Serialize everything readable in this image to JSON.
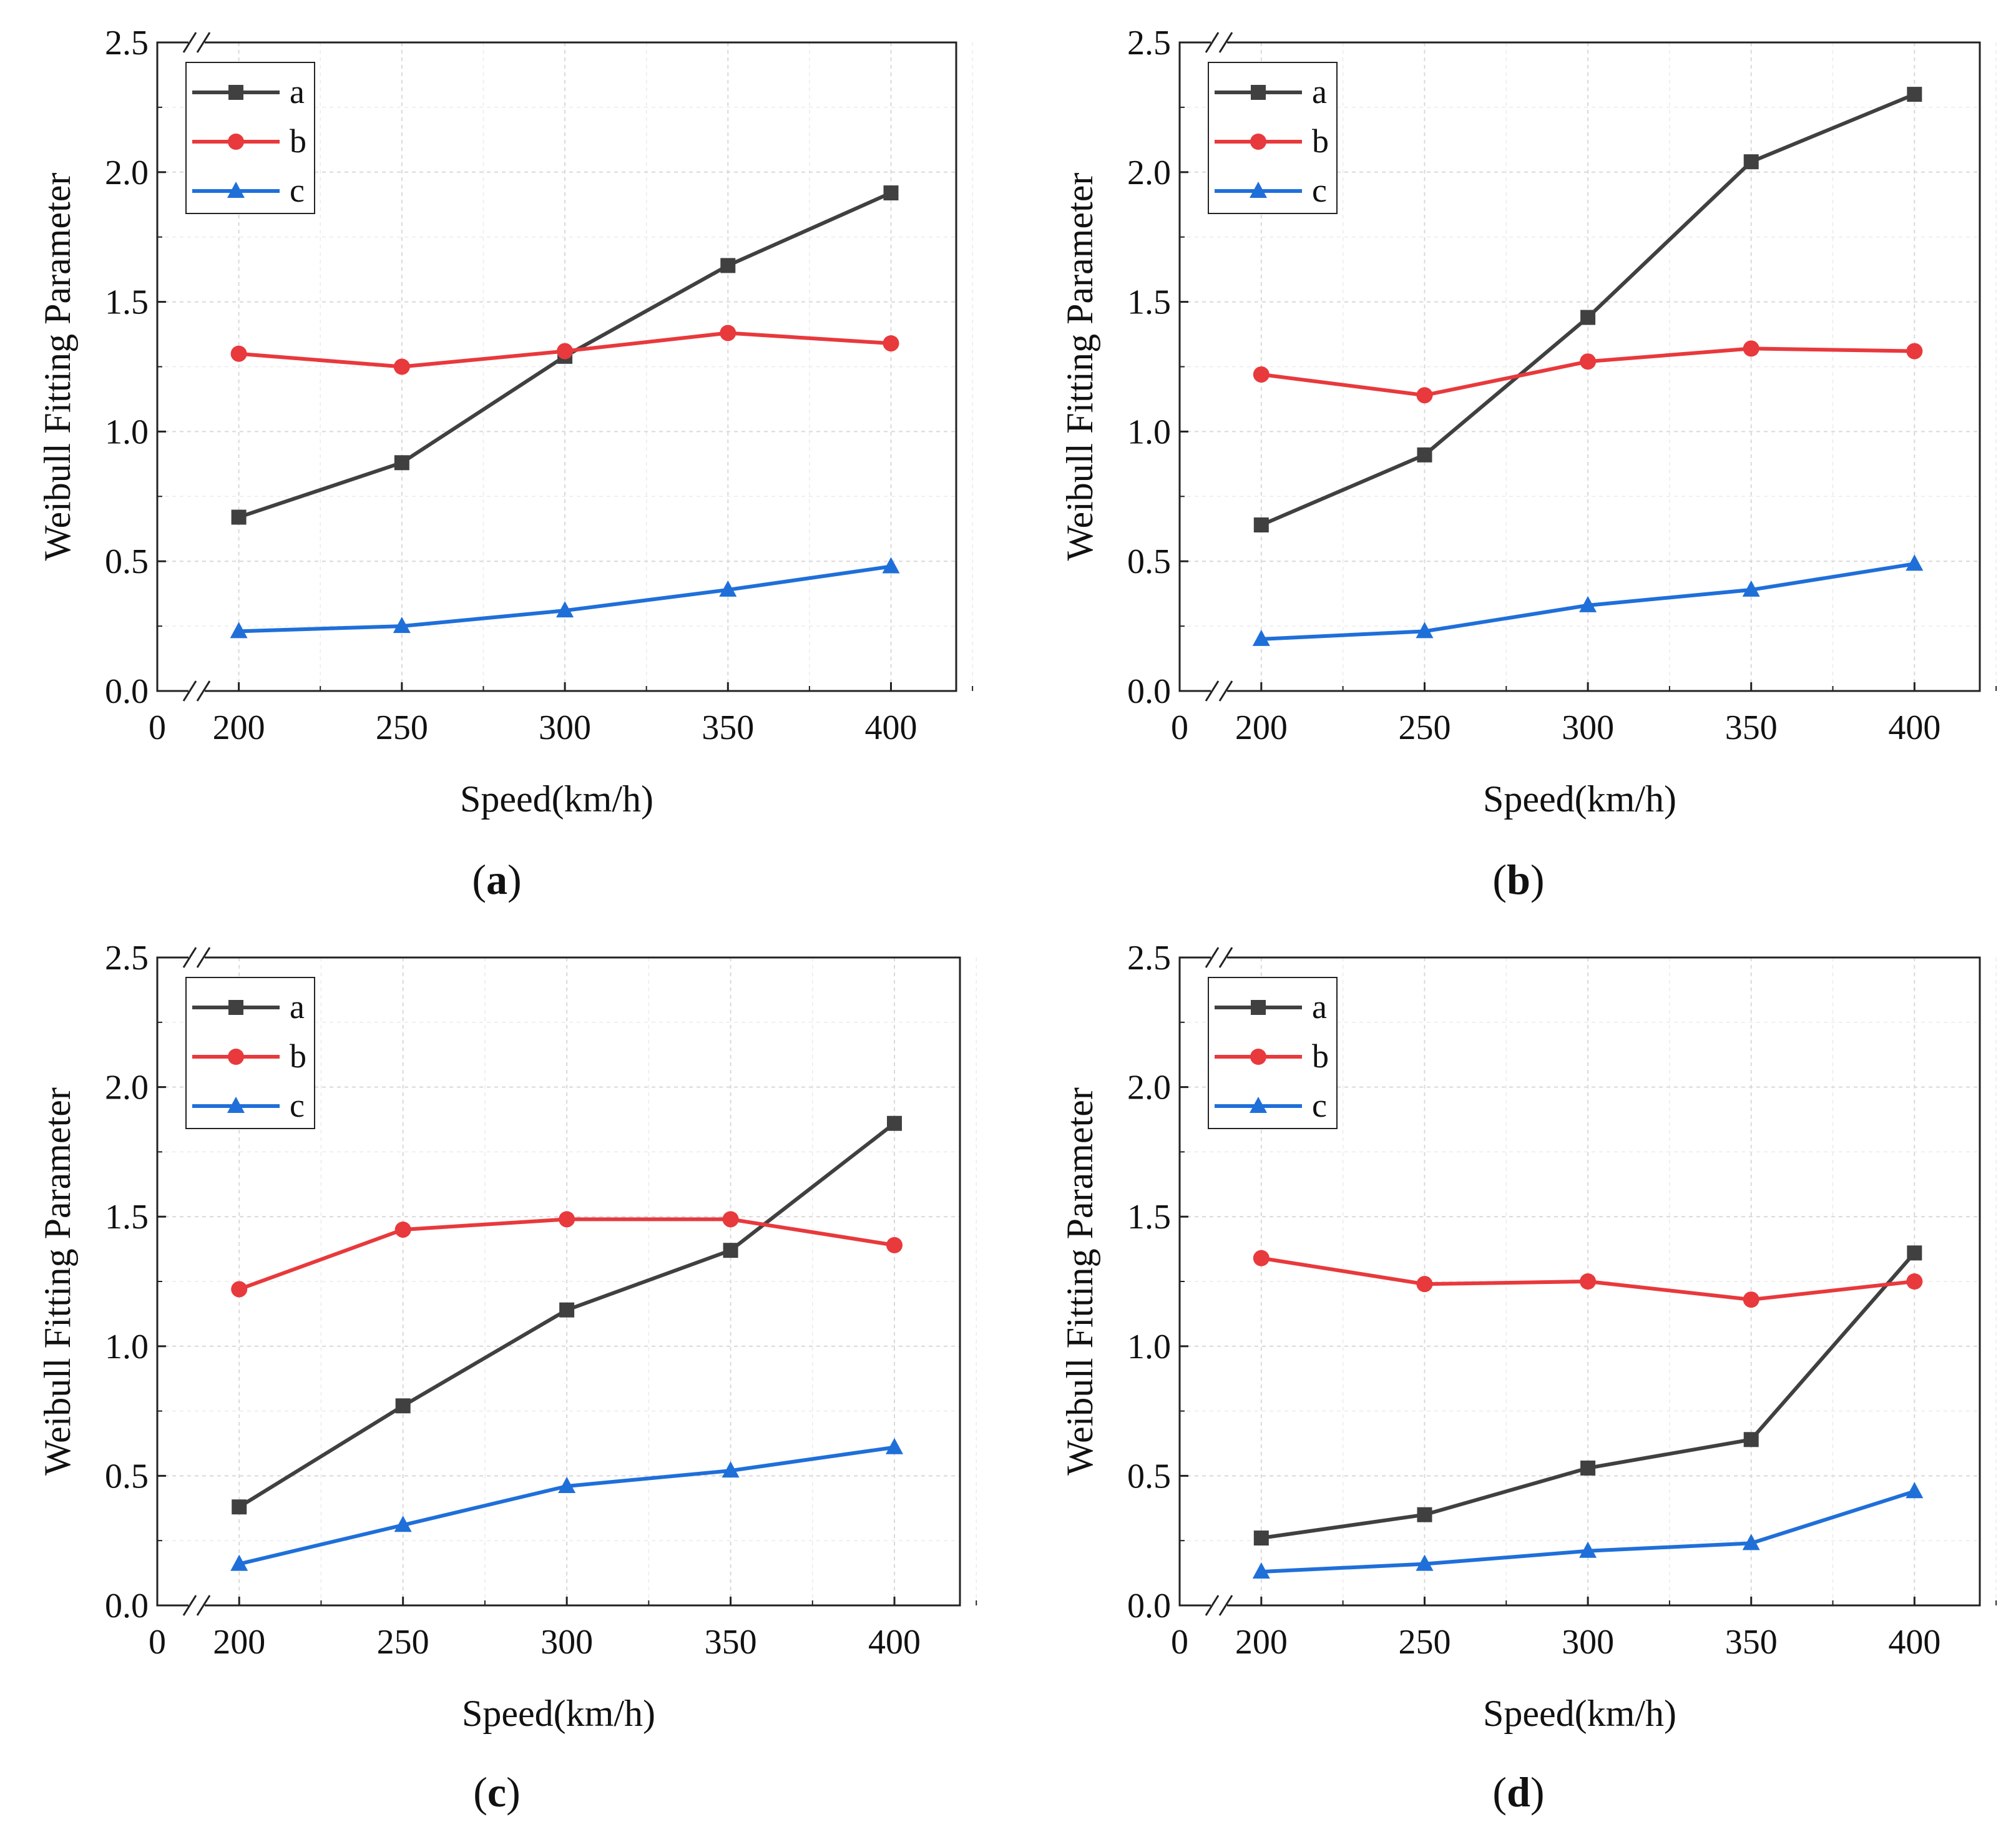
{
  "figure": {
    "y_zero_tick": "0.0",
    "x_zero_tick": "0"
  },
  "chart_data": [
    {
      "type": "line",
      "panel": "a",
      "caption_open": "(",
      "caption_letter": "a",
      "caption_close": ")",
      "xlabel": "Speed(km/h)",
      "ylabel": "Weibull Fitting Parameter",
      "x": [
        200,
        250,
        300,
        350,
        400
      ],
      "xlim": [
        175,
        420
      ],
      "ylim": [
        0,
        2.5
      ],
      "xticks": [
        200,
        250,
        300,
        350,
        400
      ],
      "yticks": [
        "0.0",
        "0.5",
        "1.0",
        "1.5",
        "2.0",
        "2.5"
      ],
      "grid": true,
      "legend": "top-left",
      "series": [
        {
          "name": "a",
          "color": "#404040",
          "marker": "square",
          "values": [
            0.67,
            0.88,
            1.29,
            1.64,
            1.92
          ]
        },
        {
          "name": "b",
          "color": "#e8393c",
          "marker": "circle",
          "values": [
            1.3,
            1.25,
            1.31,
            1.38,
            1.34
          ]
        },
        {
          "name": "c",
          "color": "#1f6fd9",
          "marker": "triangle",
          "values": [
            0.23,
            0.25,
            0.31,
            0.39,
            0.48
          ]
        }
      ]
    },
    {
      "type": "line",
      "panel": "b",
      "caption_open": "(",
      "caption_letter": "b",
      "caption_close": ")",
      "xlabel": "Speed(km/h)",
      "ylabel": "Weibull Fitting Parameter",
      "x": [
        200,
        250,
        300,
        350,
        400
      ],
      "xlim": [
        175,
        420
      ],
      "ylim": [
        0,
        2.5
      ],
      "xticks": [
        200,
        250,
        300,
        350,
        400
      ],
      "yticks": [
        "0.0",
        "0.5",
        "1.0",
        "1.5",
        "2.0",
        "2.5"
      ],
      "grid": true,
      "legend": "top-left",
      "series": [
        {
          "name": "a",
          "color": "#404040",
          "marker": "square",
          "values": [
            0.64,
            0.91,
            1.44,
            2.04,
            2.3
          ]
        },
        {
          "name": "b",
          "color": "#e8393c",
          "marker": "circle",
          "values": [
            1.22,
            1.14,
            1.27,
            1.32,
            1.31
          ]
        },
        {
          "name": "c",
          "color": "#1f6fd9",
          "marker": "triangle",
          "values": [
            0.2,
            0.23,
            0.33,
            0.39,
            0.49
          ]
        }
      ]
    },
    {
      "type": "line",
      "panel": "c",
      "caption_open": "(",
      "caption_letter": "c",
      "caption_close": ")",
      "xlabel": "Speed(km/h)",
      "ylabel": "Weibull Fitting Parameter",
      "x": [
        200,
        250,
        300,
        350,
        400
      ],
      "xlim": [
        175,
        420
      ],
      "ylim": [
        0,
        2.5
      ],
      "xticks": [
        200,
        250,
        300,
        350,
        400
      ],
      "yticks": [
        "0.0",
        "0.5",
        "1.0",
        "1.5",
        "2.0",
        "2.5"
      ],
      "grid": true,
      "legend": "top-left",
      "series": [
        {
          "name": "a",
          "color": "#404040",
          "marker": "square",
          "values": [
            0.38,
            0.77,
            1.14,
            1.37,
            1.86
          ]
        },
        {
          "name": "b",
          "color": "#e8393c",
          "marker": "circle",
          "values": [
            1.22,
            1.45,
            1.49,
            1.49,
            1.39
          ]
        },
        {
          "name": "c",
          "color": "#1f6fd9",
          "marker": "triangle",
          "values": [
            0.16,
            0.31,
            0.46,
            0.52,
            0.61
          ]
        }
      ]
    },
    {
      "type": "line",
      "panel": "d",
      "caption_open": "(",
      "caption_letter": "d",
      "caption_close": ")",
      "xlabel": "Speed(km/h)",
      "ylabel": "Weibull Fitting Parameter",
      "x": [
        200,
        250,
        300,
        350,
        400
      ],
      "xlim": [
        175,
        420
      ],
      "ylim": [
        0,
        2.5
      ],
      "xticks": [
        200,
        250,
        300,
        350,
        400
      ],
      "yticks": [
        "0.0",
        "0.5",
        "1.0",
        "1.5",
        "2.0",
        "2.5"
      ],
      "grid": true,
      "legend": "top-left",
      "series": [
        {
          "name": "a",
          "color": "#404040",
          "marker": "square",
          "values": [
            0.26,
            0.35,
            0.53,
            0.64,
            1.36
          ]
        },
        {
          "name": "b",
          "color": "#e8393c",
          "marker": "circle",
          "values": [
            1.34,
            1.24,
            1.25,
            1.18,
            1.25
          ]
        },
        {
          "name": "c",
          "color": "#1f6fd9",
          "marker": "triangle",
          "values": [
            0.13,
            0.16,
            0.21,
            0.24,
            0.44
          ]
        }
      ]
    }
  ]
}
